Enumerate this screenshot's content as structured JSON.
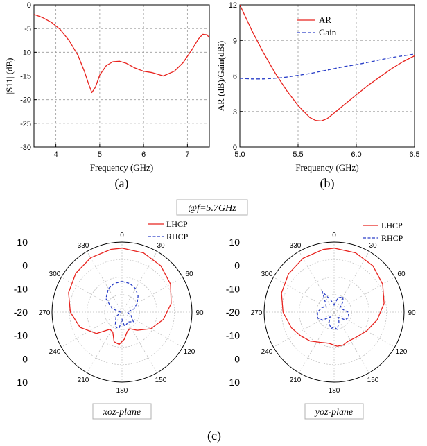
{
  "chart_data": [
    {
      "id": "a",
      "type": "line",
      "caption": "(a)",
      "xlabel": "Frequency (GHz)",
      "ylabel": "|S11| (dB)",
      "xlim": [
        3.5,
        7.5
      ],
      "ylim": [
        -30,
        0
      ],
      "xticks": [
        4,
        5,
        6,
        7
      ],
      "yticks": [
        0,
        -5,
        -10,
        -15,
        -20,
        -25,
        -30
      ],
      "grid": true,
      "legend": "none",
      "series": [
        {
          "color": "#e8231e",
          "dash": "solid",
          "x": [
            3.5,
            3.7,
            3.9,
            4.1,
            4.3,
            4.5,
            4.65,
            4.75,
            4.82,
            4.9,
            5.0,
            5.15,
            5.3,
            5.45,
            5.6,
            5.8,
            6.0,
            6.2,
            6.45,
            6.7,
            6.9,
            7.1,
            7.25,
            7.35,
            7.45,
            7.5
          ],
          "y": [
            -2.0,
            -2.7,
            -3.7,
            -5.2,
            -7.5,
            -10.6,
            -14.0,
            -16.8,
            -18.5,
            -17.4,
            -14.8,
            -12.8,
            -12.0,
            -11.9,
            -12.3,
            -13.3,
            -14.0,
            -14.3,
            -15.0,
            -14.0,
            -12.2,
            -9.5,
            -7.2,
            -6.2,
            -6.3,
            -7.0
          ]
        }
      ]
    },
    {
      "id": "b",
      "type": "line",
      "caption": "(b)",
      "xlabel": "Frequency (GHz)",
      "ylabel": "AR (dB)/Gain(dBi)",
      "xlim": [
        5.0,
        6.5
      ],
      "ylim": [
        0,
        12
      ],
      "xticks": [
        "5.0",
        "5.5",
        "6.0",
        "6.5"
      ],
      "yticks": [
        0,
        3,
        6,
        9,
        12
      ],
      "grid": true,
      "legend": "top-right",
      "series": [
        {
          "name": "AR",
          "color": "#e8231e",
          "dash": "solid",
          "x": [
            5.0,
            5.1,
            5.2,
            5.3,
            5.4,
            5.5,
            5.6,
            5.65,
            5.7,
            5.75,
            5.8,
            5.9,
            6.0,
            6.1,
            6.2,
            6.3,
            6.4,
            6.5
          ],
          "y": [
            12.0,
            9.9,
            8.0,
            6.3,
            4.8,
            3.5,
            2.5,
            2.25,
            2.2,
            2.4,
            2.8,
            3.6,
            4.4,
            5.2,
            5.9,
            6.6,
            7.2,
            7.7
          ]
        },
        {
          "name": "Gain",
          "color": "#2a3fc8",
          "dash": "dashed",
          "x": [
            5.0,
            5.1,
            5.2,
            5.3,
            5.4,
            5.5,
            5.6,
            5.7,
            5.8,
            5.9,
            6.0,
            6.1,
            6.2,
            6.3,
            6.4,
            6.5
          ],
          "y": [
            5.8,
            5.75,
            5.75,
            5.8,
            5.9,
            6.05,
            6.2,
            6.4,
            6.6,
            6.8,
            6.95,
            7.15,
            7.35,
            7.55,
            7.7,
            7.85
          ]
        }
      ]
    },
    {
      "id": "c1",
      "type": "polar",
      "plane_label": "xoz-plane",
      "angle_ticks": [
        "0",
        "30",
        "60",
        "90",
        "120",
        "150",
        "180",
        "210",
        "240",
        "270",
        "300",
        "330"
      ],
      "radial_ticks": [
        "10",
        "0",
        "-10",
        "-20",
        "-10",
        "0",
        "10"
      ],
      "rlim": [
        -30,
        10
      ],
      "legend": "top-right",
      "series": [
        {
          "name": "LHCP",
          "color": "#e8231e",
          "dash": "solid",
          "theta": [
            0,
            20,
            40,
            60,
            80,
            100,
            120,
            140,
            155,
            165,
            175,
            185,
            195,
            205,
            215,
            230,
            250,
            270,
            290,
            310,
            330,
            350,
            360
          ],
          "r": [
            6.5,
            6.0,
            4.5,
            2.0,
            -1.5,
            -6.0,
            -11.0,
            -16.5,
            -19.5,
            -18.5,
            -14.5,
            -11.5,
            -12.5,
            -17.5,
            -18.0,
            -11.0,
            -4.5,
            -0.5,
            2.5,
            4.5,
            5.8,
            6.4,
            6.5
          ]
        },
        {
          "name": "RHCP",
          "color": "#2a3fc8",
          "dash": "dashed",
          "theta": [
            0,
            15,
            30,
            45,
            60,
            75,
            90,
            110,
            130,
            150,
            160,
            170,
            180,
            190,
            200,
            210,
            230,
            250,
            270,
            290,
            310,
            330,
            345,
            360
          ],
          "r": [
            -12.5,
            -13.0,
            -14.5,
            -17.0,
            -20.0,
            -23.0,
            -27.0,
            -24.5,
            -21.5,
            -23.5,
            -22.5,
            -22.0,
            -26.0,
            -21.0,
            -20.5,
            -22.5,
            -25.5,
            -28.5,
            -29.0,
            -24.0,
            -18.0,
            -14.5,
            -13.0,
            -12.5
          ]
        }
      ]
    },
    {
      "id": "c2",
      "type": "polar",
      "plane_label": "yoz-plane",
      "angle_ticks": [
        "0",
        "30",
        "60",
        "90",
        "120",
        "150",
        "180",
        "210",
        "240",
        "270",
        "300",
        "330"
      ],
      "radial_ticks": [
        "10",
        "0",
        "-10",
        "-20",
        "-10",
        "0",
        "10"
      ],
      "rlim": [
        -30,
        10
      ],
      "legend": "top-right",
      "series": [
        {
          "name": "LHCP",
          "color": "#e8231e",
          "dash": "solid",
          "theta": [
            0,
            20,
            40,
            60,
            80,
            100,
            120,
            140,
            155,
            165,
            175,
            190,
            205,
            220,
            235,
            250,
            270,
            290,
            310,
            330,
            350,
            360
          ],
          "r": [
            6.5,
            6.0,
            4.5,
            2.0,
            -1.0,
            -5.0,
            -8.5,
            -11.0,
            -11.5,
            -10.5,
            -10.5,
            -12.0,
            -11.0,
            -8.5,
            -6.5,
            -4.0,
            -0.8,
            2.0,
            4.0,
            5.5,
            6.3,
            6.5
          ]
        },
        {
          "name": "RHCP",
          "color": "#2a3fc8",
          "dash": "dashed",
          "theta": [
            0,
            15,
            30,
            40,
            55,
            70,
            90,
            110,
            125,
            140,
            155,
            170,
            180,
            190,
            205,
            220,
            235,
            250,
            270,
            290,
            305,
            320,
            330,
            345,
            360
          ],
          "r": [
            -26.0,
            -21.5,
            -20.0,
            -22.0,
            -26.0,
            -25.0,
            -22.0,
            -21.0,
            -22.5,
            -26.0,
            -23.5,
            -20.0,
            -21.5,
            -20.5,
            -23.0,
            -26.5,
            -22.0,
            -20.0,
            -20.5,
            -22.5,
            -24.5,
            -22.0,
            -16.5,
            -23.0,
            -26.0
          ]
        }
      ]
    }
  ],
  "condition_label": "@f=5.7GHz",
  "caption_c": "(c)"
}
